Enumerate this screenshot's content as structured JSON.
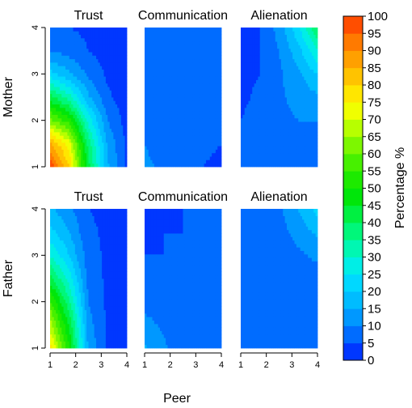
{
  "chart_data": {
    "type": "heatmap",
    "xlabel": "Peer",
    "colorbar": {
      "label": "Percentage %",
      "ticks": [
        0,
        5,
        10,
        15,
        20,
        25,
        30,
        35,
        40,
        45,
        50,
        55,
        60,
        65,
        70,
        75,
        80,
        85,
        90,
        95,
        100
      ],
      "colors": [
        "#0037FF",
        "#006CFF",
        "#0098FF",
        "#00BCFF",
        "#00D8FF",
        "#00EEE6",
        "#00F7B2",
        "#00F77A",
        "#00F041",
        "#00E60A",
        "#1DEA00",
        "#47F000",
        "#7DF700",
        "#B7FF00",
        "#F0FF00",
        "#FFE600",
        "#FFC300",
        "#FFA000",
        "#FF7A00",
        "#FF4E00"
      ]
    },
    "x_ticks": [
      1,
      2,
      3,
      4
    ],
    "y_ticks": [
      1,
      2,
      3,
      4
    ],
    "xlim": [
      1,
      4
    ],
    "ylim": [
      1,
      4
    ],
    "rows": [
      {
        "ylabel": "Mother",
        "panels": [
          {
            "title": "Trust",
            "z": [
              [
                99,
                80,
                42,
                16,
                4
              ],
              [
                86,
                72,
                38,
                14,
                4
              ],
              [
                62,
                52,
                28,
                10,
                3
              ],
              [
                42,
                32,
                16,
                6,
                2
              ],
              [
                22,
                16,
                9,
                4,
                2
              ],
              [
                10,
                8,
                5,
                3,
                2
              ],
              [
                6,
                5,
                4,
                2,
                2
              ]
            ]
          },
          {
            "title": "Communication",
            "z": [
              [
                11,
                9,
                7,
                5,
                4
              ],
              [
                10,
                8,
                6,
                6,
                5
              ],
              [
                8,
                7,
                6,
                5,
                5
              ],
              [
                7,
                6,
                6,
                6,
                6
              ],
              [
                6,
                6,
                6,
                8,
                8
              ],
              [
                5,
                6,
                6,
                8,
                9
              ],
              [
                5,
                6,
                7,
                8,
                10
              ]
            ]
          },
          {
            "title": "Alienation",
            "z": [
              [
                7,
                7,
                8,
                9,
                9
              ],
              [
                7,
                7,
                8,
                9,
                9
              ],
              [
                5,
                7,
                8,
                10,
                10
              ],
              [
                4,
                6,
                9,
                12,
                14
              ],
              [
                4,
                5,
                9,
                14,
                20
              ],
              [
                4,
                5,
                10,
                18,
                30
              ],
              [
                4,
                5,
                12,
                24,
                40
              ]
            ]
          }
        ]
      },
      {
        "ylabel": "Father",
        "panels": [
          {
            "title": "Trust",
            "z": [
              [
                78,
                50,
                14,
                4,
                3
              ],
              [
                68,
                44,
                12,
                4,
                3
              ],
              [
                56,
                36,
                10,
                4,
                3
              ],
              [
                42,
                28,
                8,
                4,
                3
              ],
              [
                30,
                20,
                7,
                4,
                3
              ],
              [
                22,
                15,
                6,
                4,
                3
              ],
              [
                16,
                11,
                5,
                4,
                3
              ]
            ]
          },
          {
            "title": "Communication",
            "z": [
              [
                16,
                11,
                6,
                5,
                5
              ],
              [
                12,
                9,
                6,
                5,
                5
              ],
              [
                8,
                7,
                6,
                5,
                5
              ],
              [
                6,
                6,
                6,
                6,
                6
              ],
              [
                5,
                5,
                6,
                6,
                7
              ],
              [
                4,
                5,
                5,
                6,
                7
              ],
              [
                4,
                4,
                5,
                6,
                8
              ]
            ]
          },
          {
            "title": "Alienation",
            "z": [
              [
                8,
                7,
                6,
                5,
                5
              ],
              [
                7,
                7,
                6,
                5,
                5
              ],
              [
                7,
                7,
                6,
                6,
                6
              ],
              [
                6,
                6,
                7,
                7,
                8
              ],
              [
                6,
                6,
                7,
                9,
                11
              ],
              [
                6,
                6,
                8,
                12,
                16
              ],
              [
                6,
                6,
                9,
                15,
                22
              ]
            ]
          }
        ]
      }
    ]
  }
}
